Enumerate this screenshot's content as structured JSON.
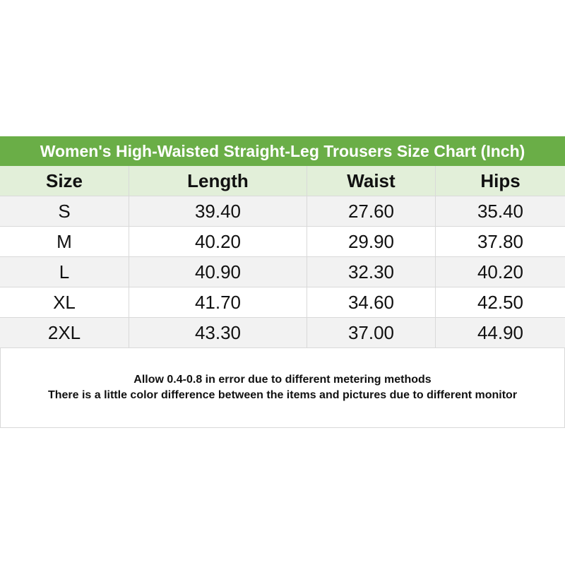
{
  "table": {
    "title": "Women's High-Waisted Straight-Leg Trousers Size Chart (Inch)",
    "columns": [
      "Size",
      "Length",
      "Waist",
      "Hips"
    ],
    "rows": [
      [
        "S",
        "39.40",
        "27.60",
        "35.40"
      ],
      [
        "M",
        "40.20",
        "29.90",
        "37.80"
      ],
      [
        "L",
        "40.90",
        "32.30",
        "40.20"
      ],
      [
        "XL",
        "41.70",
        "34.60",
        "42.50"
      ],
      [
        "2XL",
        "43.30",
        "37.00",
        "44.90"
      ]
    ]
  },
  "notes": [
    "Allow 0.4-0.8 in error due to different metering methods",
    "There is a little color difference between the items and pictures due to different monitor"
  ]
}
